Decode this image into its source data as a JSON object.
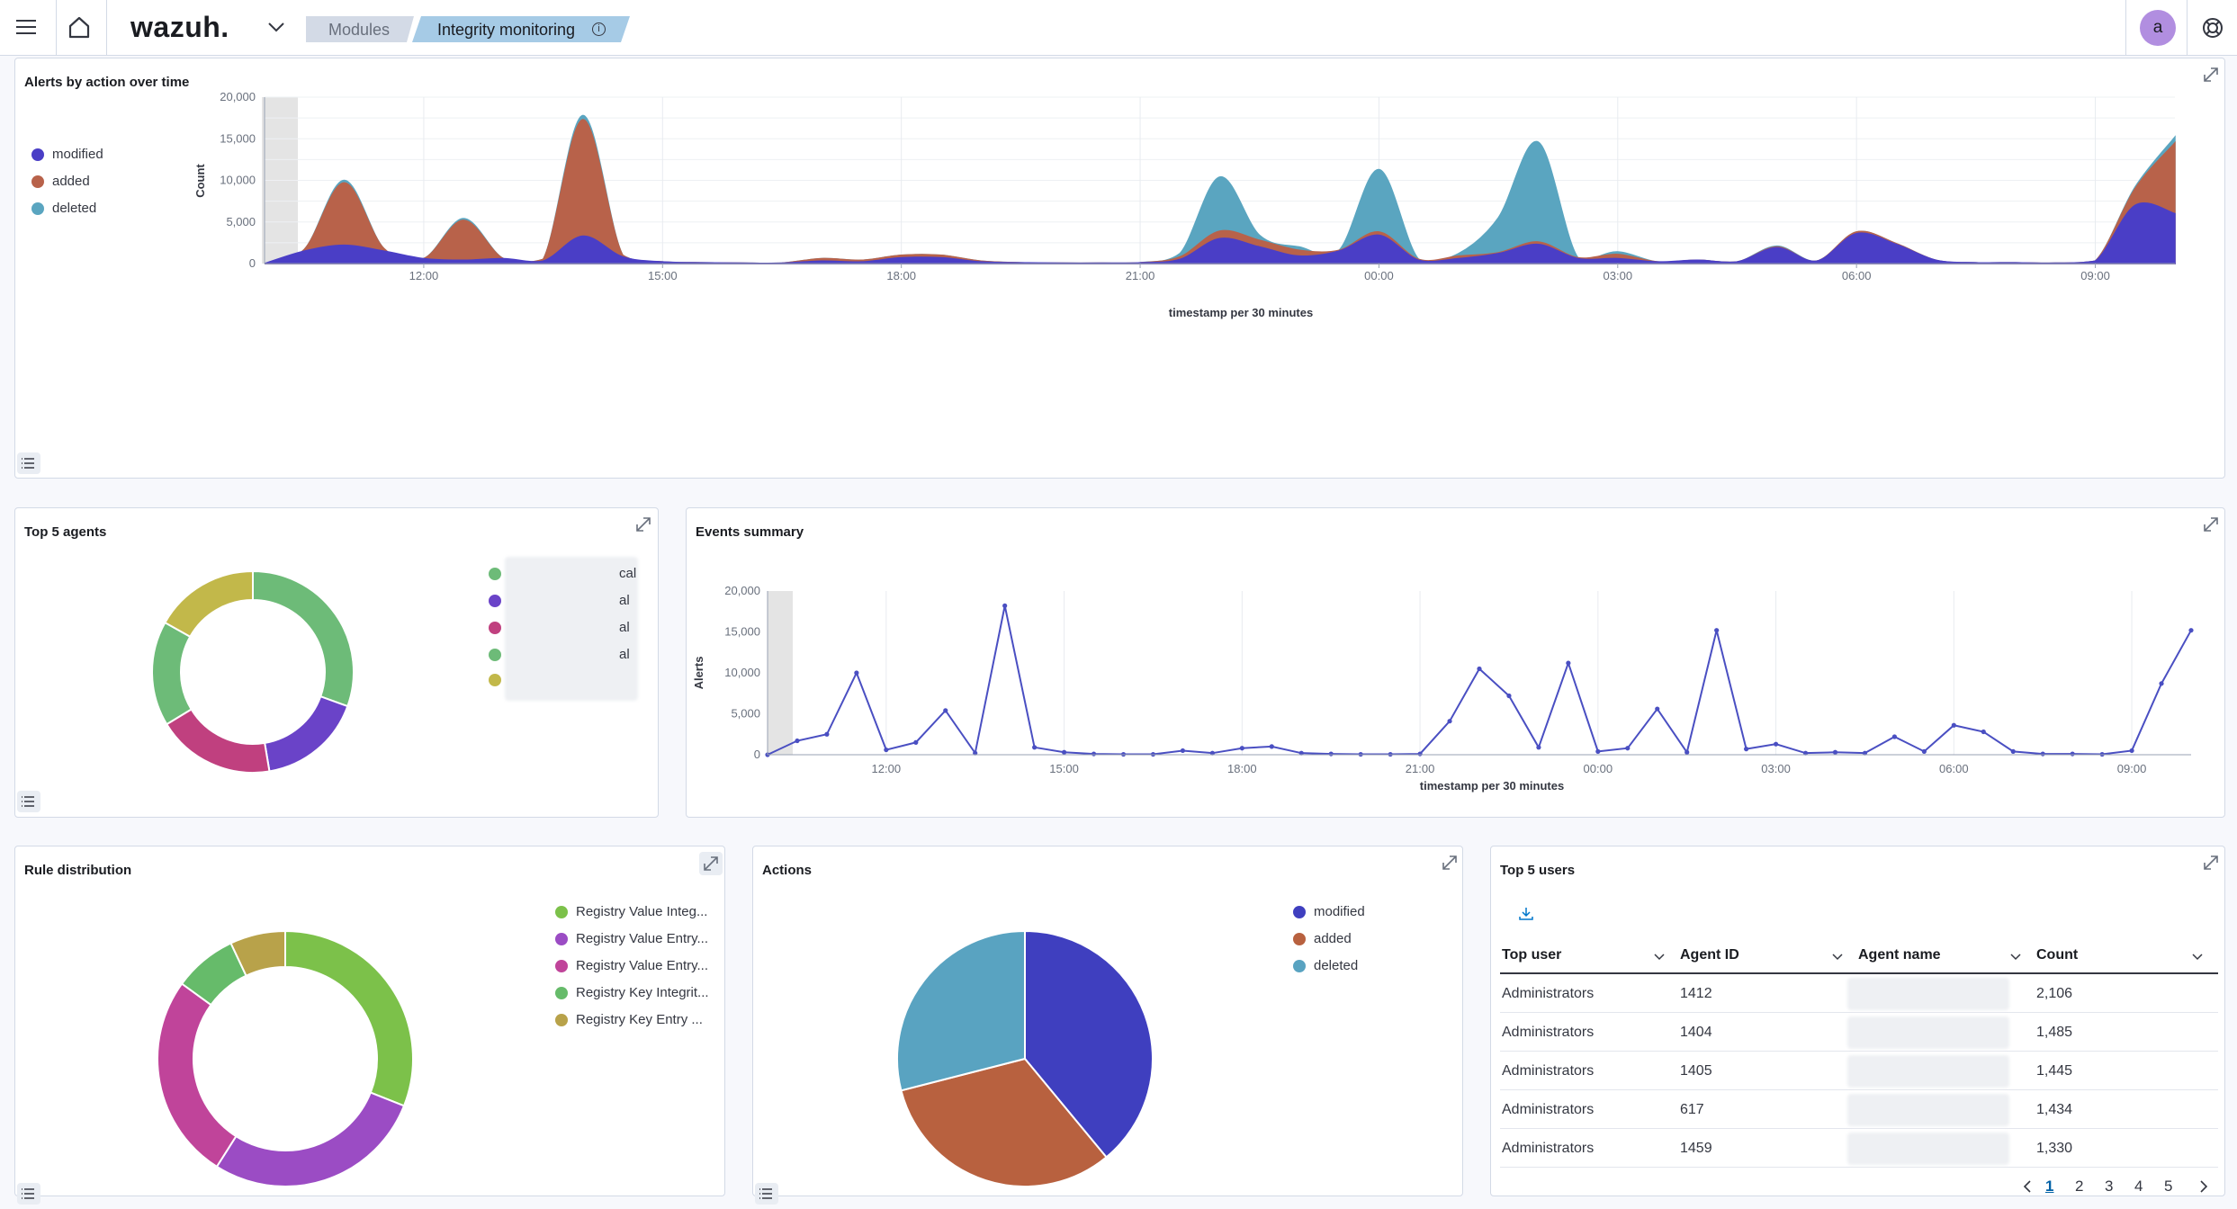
{
  "header": {
    "brand": "wazuh.",
    "breadcrumb": [
      "Modules",
      "Integrity monitoring"
    ],
    "avatar": "a"
  },
  "alerts_over_time": {
    "title": "Alerts by action over time",
    "legend": [
      {
        "label": "modified",
        "color": "#4a3ec6"
      },
      {
        "label": "added",
        "color": "#b8624a"
      },
      {
        "label": "deleted",
        "color": "#5aa5c0"
      }
    ],
    "ylabel": "Count",
    "xlabel": "timestamp per 30 minutes",
    "yticks": [
      "20,000",
      "15,000",
      "10,000",
      "5,000",
      "0"
    ],
    "xticks": [
      "12:00",
      "15:00",
      "18:00",
      "21:00",
      "00:00",
      "03:00",
      "06:00",
      "09:00"
    ]
  },
  "top_agents": {
    "title": "Top 5 agents",
    "legend_suffixes": [
      "cal",
      "al",
      "al",
      "al",
      ""
    ],
    "legend_colors": [
      "#6dbb78",
      "#6a43c8",
      "#c0407f",
      "#6dbb78",
      "#c2b84a"
    ]
  },
  "events_summary": {
    "title": "Events summary",
    "ylabel": "Alerts",
    "xlabel": "timestamp per 30 minutes",
    "yticks": [
      "20,000",
      "15,000",
      "10,000",
      "5,000",
      "0"
    ],
    "xticks": [
      "12:00",
      "15:00",
      "18:00",
      "21:00",
      "00:00",
      "03:00",
      "06:00",
      "09:00"
    ]
  },
  "rule_distribution": {
    "title": "Rule distribution",
    "legend": [
      {
        "label": "Registry Value Integ...",
        "color": "#7cc14a"
      },
      {
        "label": "Registry Value Entry...",
        "color": "#9b4cc4"
      },
      {
        "label": "Registry Value Entry...",
        "color": "#c0449a"
      },
      {
        "label": "Registry Key Integrit...",
        "color": "#66bb6a"
      },
      {
        "label": "Registry Key Entry ...",
        "color": "#b8a24a"
      }
    ]
  },
  "actions": {
    "title": "Actions",
    "legend": [
      {
        "label": "modified",
        "color": "#3f3fbf"
      },
      {
        "label": "added",
        "color": "#b8613f"
      },
      {
        "label": "deleted",
        "color": "#59a3c1"
      }
    ]
  },
  "top_users": {
    "title": "Top 5 users",
    "columns": [
      "Top user",
      "Agent ID",
      "Agent name",
      "Count"
    ],
    "rows": [
      [
        "Administrators",
        "1412",
        "",
        "2,106"
      ],
      [
        "Administrators",
        "1404",
        "",
        "1,485"
      ],
      [
        "Administrators",
        "1405",
        "",
        "1,445"
      ],
      [
        "Administrators",
        "617",
        "",
        "1,434"
      ],
      [
        "Administrators",
        "1459",
        "",
        "1,330"
      ]
    ],
    "pages": [
      "1",
      "2",
      "3",
      "4",
      "5"
    ]
  },
  "chart_data": [
    {
      "type": "area",
      "title": "Alerts by action over time",
      "xlabel": "timestamp per 30 minutes",
      "ylabel": "Count",
      "ylim": [
        0,
        20000
      ],
      "x": [
        "10:00",
        "10:30",
        "11:00",
        "11:30",
        "12:00",
        "12:30",
        "13:00",
        "13:30",
        "14:00",
        "14:30",
        "15:00",
        "15:30",
        "16:00",
        "16:30",
        "17:00",
        "17:30",
        "18:00",
        "18:30",
        "19:00",
        "19:30",
        "20:00",
        "20:30",
        "21:00",
        "21:30",
        "22:00",
        "22:30",
        "23:00",
        "23:30",
        "00:00",
        "00:30",
        "01:00",
        "01:30",
        "02:00",
        "02:30",
        "03:00",
        "03:30",
        "04:00",
        "04:30",
        "05:00",
        "05:30",
        "06:00",
        "06:30",
        "07:00",
        "07:30",
        "08:00",
        "08:30",
        "09:00",
        "09:30",
        "10:00"
      ],
      "series": [
        {
          "name": "modified",
          "values": [
            0,
            1500,
            2200,
            1500,
            600,
            400,
            600,
            300,
            3300,
            800,
            200,
            100,
            50,
            50,
            300,
            200,
            700,
            700,
            200,
            100,
            50,
            50,
            100,
            500,
            3000,
            2000,
            900,
            1500,
            3400,
            400,
            600,
            1200,
            2300,
            600,
            600,
            200,
            400,
            200,
            1900,
            300,
            3600,
            2300,
            400,
            100,
            100,
            50,
            300,
            7000,
            6000
          ]
        },
        {
          "name": "added",
          "values": [
            0,
            200,
            7500,
            300,
            0,
            4800,
            0,
            200,
            14000,
            200,
            0,
            0,
            0,
            0,
            300,
            200,
            300,
            300,
            100,
            0,
            0,
            0,
            0,
            300,
            900,
            800,
            700,
            100,
            400,
            100,
            300,
            100,
            300,
            100,
            500,
            0,
            0,
            0,
            100,
            0,
            200,
            100,
            0,
            0,
            0,
            0,
            0,
            2000,
            8500
          ]
        },
        {
          "name": "deleted",
          "values": [
            0,
            0,
            300,
            0,
            0,
            200,
            0,
            0,
            500,
            0,
            0,
            0,
            0,
            0,
            0,
            0,
            0,
            0,
            0,
            0,
            0,
            0,
            0,
            400,
            6500,
            600,
            400,
            0,
            7500,
            0,
            300,
            4200,
            12000,
            0,
            300,
            0,
            0,
            0,
            100,
            0,
            0,
            0,
            0,
            0,
            0,
            0,
            0,
            200,
            700
          ]
        }
      ]
    },
    {
      "type": "pie",
      "title": "Top 5 agents",
      "series": [
        {
          "values": [
            29,
            16,
            18,
            16,
            16
          ]
        }
      ]
    },
    {
      "type": "line",
      "title": "Events summary",
      "xlabel": "timestamp per 30 minutes",
      "ylabel": "Alerts",
      "ylim": [
        0,
        20000
      ],
      "x": [
        "10:00",
        "10:30",
        "11:00",
        "11:30",
        "12:00",
        "12:30",
        "13:00",
        "13:30",
        "14:00",
        "14:30",
        "15:00",
        "15:30",
        "16:00",
        "16:30",
        "17:00",
        "17:30",
        "18:00",
        "18:30",
        "19:00",
        "19:30",
        "20:00",
        "20:30",
        "21:00",
        "21:30",
        "22:00",
        "22:30",
        "23:00",
        "23:30",
        "00:00",
        "00:30",
        "01:00",
        "01:30",
        "02:00",
        "02:30",
        "03:00",
        "03:30",
        "04:00",
        "04:30",
        "05:00",
        "05:30",
        "06:00",
        "06:30",
        "07:00",
        "07:30",
        "08:00",
        "08:30",
        "09:00",
        "09:30",
        "10:00"
      ],
      "series": [
        {
          "values": [
            0,
            1700,
            2500,
            10000,
            600,
            1500,
            5400,
            200,
            18200,
            900,
            300,
            100,
            50,
            50,
            500,
            200,
            800,
            1000,
            200,
            100,
            50,
            50,
            100,
            4100,
            10500,
            7200,
            900,
            11200,
            400,
            800,
            5600,
            300,
            15200,
            700,
            1300,
            200,
            300,
            200,
            2200,
            400,
            3600,
            2800,
            400,
            100,
            100,
            50,
            500,
            8700,
            15200
          ]
        }
      ]
    },
    {
      "type": "pie",
      "title": "Rule distribution",
      "series": [
        {
          "values": [
            31,
            28,
            26,
            8,
            7
          ]
        }
      ]
    },
    {
      "type": "pie",
      "title": "Actions",
      "categories": [
        "modified",
        "added",
        "deleted"
      ],
      "series": [
        {
          "values": [
            39,
            32,
            29
          ]
        }
      ]
    }
  ]
}
